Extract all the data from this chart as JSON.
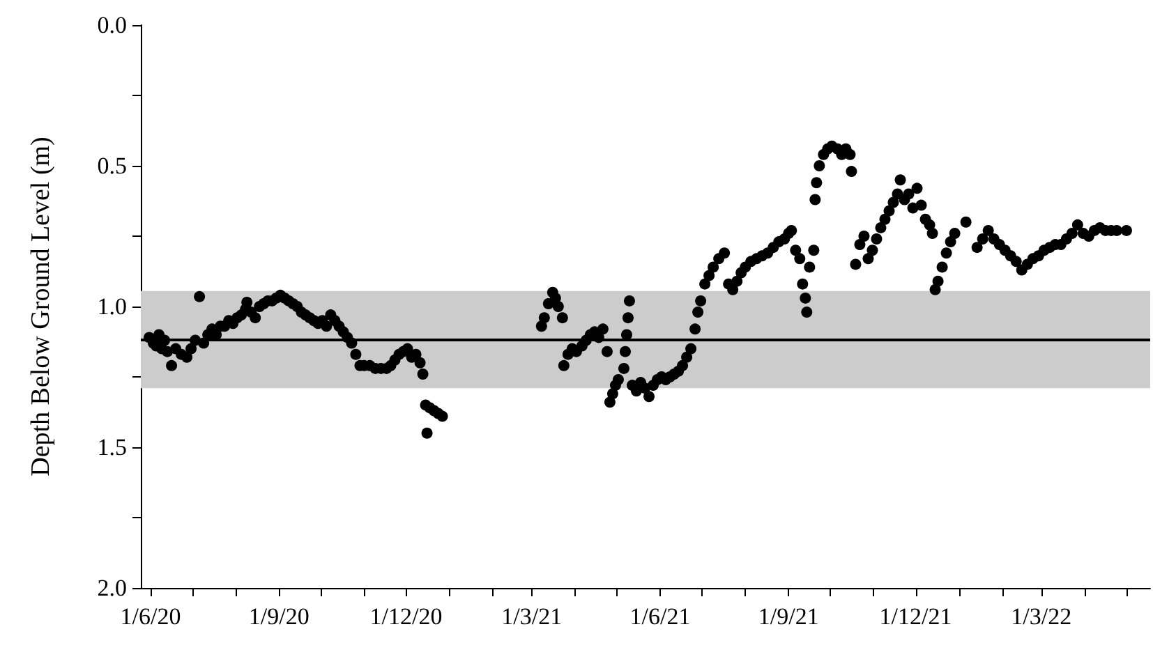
{
  "chart_data": {
    "type": "scatter",
    "ylabel": "Depth Below Ground Level (m)",
    "color": "#000000",
    "marker": "circle",
    "x": [
      "2020-05-31",
      "2020-06-03",
      "2020-06-05",
      "2020-06-07",
      "2020-06-09",
      "2020-06-11",
      "2020-06-13",
      "2020-06-16",
      "2020-06-19",
      "2020-06-23",
      "2020-06-27",
      "2020-06-30",
      "2020-07-03",
      "2020-07-06",
      "2020-07-09",
      "2020-07-12",
      "2020-07-15",
      "2020-07-18",
      "2020-07-21",
      "2020-07-24",
      "2020-07-27",
      "2020-07-30",
      "2020-08-02",
      "2020-08-05",
      "2020-08-08",
      "2020-08-09",
      "2020-08-12",
      "2020-08-15",
      "2020-08-18",
      "2020-08-21",
      "2020-08-24",
      "2020-08-27",
      "2020-08-30",
      "2020-09-02",
      "2020-09-05",
      "2020-09-08",
      "2020-09-11",
      "2020-09-14",
      "2020-09-17",
      "2020-09-20",
      "2020-09-23",
      "2020-09-26",
      "2020-09-29",
      "2020-10-02",
      "2020-10-05",
      "2020-10-08",
      "2020-10-11",
      "2020-10-14",
      "2020-10-17",
      "2020-10-20",
      "2020-10-23",
      "2020-10-26",
      "2020-10-29",
      "2020-11-01",
      "2020-11-05",
      "2020-11-09",
      "2020-11-13",
      "2020-11-17",
      "2020-11-20",
      "2020-11-23",
      "2020-11-26",
      "2020-11-29",
      "2020-12-02",
      "2020-12-05",
      "2020-12-08",
      "2020-12-11",
      "2020-12-13",
      "2020-12-15",
      "2020-12-16",
      "2020-12-18",
      "2020-12-21",
      "2020-12-24",
      "2020-12-27",
      "2021-03-08",
      "2021-03-10",
      "2021-03-13",
      "2021-03-16",
      "2021-03-18",
      "2021-03-20",
      "2021-03-23",
      "2021-03-24",
      "2021-03-27",
      "2021-03-30",
      "2021-04-02",
      "2021-04-06",
      "2021-04-09",
      "2021-04-12",
      "2021-04-15",
      "2021-04-18",
      "2021-04-21",
      "2021-04-24",
      "2021-04-26",
      "2021-04-28",
      "2021-04-30",
      "2021-05-02",
      "2021-05-06",
      "2021-05-07",
      "2021-05-08",
      "2021-05-09",
      "2021-05-10",
      "2021-05-12",
      "2021-05-15",
      "2021-05-18",
      "2021-05-21",
      "2021-05-24",
      "2021-05-27",
      "2021-05-30",
      "2021-06-02",
      "2021-06-05",
      "2021-06-08",
      "2021-06-11",
      "2021-06-14",
      "2021-06-17",
      "2021-06-20",
      "2021-06-23",
      "2021-06-26",
      "2021-06-28",
      "2021-06-30",
      "2021-07-03",
      "2021-07-06",
      "2021-07-09",
      "2021-07-13",
      "2021-07-17",
      "2021-07-20",
      "2021-07-23",
      "2021-07-26",
      "2021-07-29",
      "2021-08-01",
      "2021-08-05",
      "2021-08-09",
      "2021-08-13",
      "2021-08-17",
      "2021-08-21",
      "2021-08-25",
      "2021-08-29",
      "2021-09-01",
      "2021-09-03",
      "2021-09-06",
      "2021-09-09",
      "2021-09-11",
      "2021-09-13",
      "2021-09-14",
      "2021-09-16",
      "2021-09-19",
      "2021-09-20",
      "2021-09-21",
      "2021-09-23",
      "2021-09-26",
      "2021-09-29",
      "2021-10-02",
      "2021-10-06",
      "2021-10-09",
      "2021-10-12",
      "2021-10-15",
      "2021-10-16",
      "2021-10-19",
      "2021-10-22",
      "2021-10-25",
      "2021-10-28",
      "2021-10-31",
      "2021-11-03",
      "2021-11-06",
      "2021-11-09",
      "2021-11-12",
      "2021-11-15",
      "2021-11-18",
      "2021-11-20",
      "2021-11-23",
      "2021-11-26",
      "2021-11-29",
      "2021-12-02",
      "2021-12-05",
      "2021-12-08",
      "2021-12-11",
      "2021-12-13",
      "2021-12-15",
      "2021-12-17",
      "2021-12-20",
      "2021-12-23",
      "2021-12-26",
      "2021-12-29",
      "2022-01-06",
      "2022-01-14",
      "2022-01-18",
      "2022-01-22",
      "2022-01-26",
      "2022-01-30",
      "2022-02-03",
      "2022-02-07",
      "2022-02-11",
      "2022-02-15",
      "2022-02-19",
      "2022-02-23",
      "2022-02-27",
      "2022-03-03",
      "2022-03-07",
      "2022-03-11",
      "2022-03-15",
      "2022-03-19",
      "2022-03-23",
      "2022-03-27",
      "2022-03-31",
      "2022-04-04",
      "2022-04-08",
      "2022-04-12",
      "2022-04-16",
      "2022-04-20",
      "2022-04-24",
      "2022-05-01"
    ],
    "values": [
      1.11,
      1.13,
      1.14,
      1.1,
      1.15,
      1.12,
      1.16,
      1.21,
      1.15,
      1.17,
      1.18,
      1.15,
      1.12,
      0.965,
      1.13,
      1.1,
      1.08,
      1.1,
      1.07,
      1.07,
      1.05,
      1.06,
      1.04,
      1.03,
      1.01,
      0.985,
      1.02,
      1.04,
      1.0,
      0.99,
      0.98,
      0.98,
      0.97,
      0.96,
      0.97,
      0.98,
      0.99,
      1.0,
      1.02,
      1.03,
      1.04,
      1.05,
      1.06,
      1.05,
      1.07,
      1.03,
      1.05,
      1.07,
      1.09,
      1.11,
      1.13,
      1.17,
      1.21,
      1.21,
      1.21,
      1.22,
      1.22,
      1.22,
      1.21,
      1.19,
      1.17,
      1.16,
      1.15,
      1.18,
      1.17,
      1.2,
      1.24,
      1.35,
      1.45,
      1.36,
      1.37,
      1.38,
      1.39,
      1.07,
      1.04,
      0.99,
      0.95,
      0.97,
      1.0,
      1.04,
      1.21,
      1.17,
      1.15,
      1.16,
      1.14,
      1.12,
      1.1,
      1.09,
      1.11,
      1.08,
      1.16,
      1.34,
      1.31,
      1.28,
      1.26,
      1.22,
      1.16,
      1.1,
      1.04,
      0.98,
      1.28,
      1.3,
      1.27,
      1.29,
      1.32,
      1.28,
      1.26,
      1.25,
      1.26,
      1.25,
      1.24,
      1.23,
      1.21,
      1.18,
      1.15,
      1.08,
      1.02,
      0.98,
      0.92,
      0.89,
      0.86,
      0.83,
      0.81,
      0.92,
      0.94,
      0.91,
      0.88,
      0.86,
      0.84,
      0.83,
      0.82,
      0.81,
      0.79,
      0.77,
      0.76,
      0.74,
      0.73,
      0.8,
      0.83,
      0.92,
      0.97,
      1.02,
      0.86,
      0.8,
      0.62,
      0.56,
      0.5,
      0.46,
      0.44,
      0.43,
      0.44,
      0.46,
      0.44,
      0.46,
      0.52,
      0.85,
      0.78,
      0.75,
      0.83,
      0.8,
      0.76,
      0.72,
      0.69,
      0.66,
      0.63,
      0.6,
      0.55,
      0.62,
      0.6,
      0.65,
      0.58,
      0.64,
      0.69,
      0.71,
      0.74,
      0.94,
      0.91,
      0.86,
      0.81,
      0.77,
      0.74,
      0.7,
      0.79,
      0.76,
      0.73,
      0.76,
      0.78,
      0.8,
      0.82,
      0.84,
      0.87,
      0.85,
      0.83,
      0.82,
      0.8,
      0.79,
      0.78,
      0.78,
      0.76,
      0.74,
      0.71,
      0.74,
      0.75,
      0.73,
      0.72,
      0.73,
      0.73,
      0.73,
      0.73
    ],
    "xlim": [
      "2020-05-25",
      "2022-05-18"
    ],
    "xticks": [
      {
        "value": "2020-06-01",
        "label": "1/6/20"
      },
      {
        "value": "2020-07-01",
        "label": null
      },
      {
        "value": "2020-08-01",
        "label": null
      },
      {
        "value": "2020-09-01",
        "label": "1/9/20"
      },
      {
        "value": "2020-10-01",
        "label": null
      },
      {
        "value": "2020-11-01",
        "label": null
      },
      {
        "value": "2020-12-01",
        "label": "1/12/20"
      },
      {
        "value": "2021-01-01",
        "label": null
      },
      {
        "value": "2021-02-01",
        "label": null
      },
      {
        "value": "2021-03-01",
        "label": "1/3/21"
      },
      {
        "value": "2021-04-01",
        "label": null
      },
      {
        "value": "2021-05-01",
        "label": null
      },
      {
        "value": "2021-06-01",
        "label": "1/6/21"
      },
      {
        "value": "2021-07-01",
        "label": null
      },
      {
        "value": "2021-08-01",
        "label": null
      },
      {
        "value": "2021-09-01",
        "label": "1/9/21"
      },
      {
        "value": "2021-10-01",
        "label": null
      },
      {
        "value": "2021-11-01",
        "label": null
      },
      {
        "value": "2021-12-01",
        "label": "1/12/21"
      },
      {
        "value": "2022-01-01",
        "label": null
      },
      {
        "value": "2022-02-01",
        "label": null
      },
      {
        "value": "2022-03-01",
        "label": "1/3/22"
      },
      {
        "value": "2022-04-01",
        "label": null
      },
      {
        "value": "2022-05-01",
        "label": null
      }
    ],
    "ylim": [
      2,
      0
    ],
    "yticks": [
      {
        "value": 0,
        "label": "0.0"
      },
      {
        "value": 0.25,
        "label": null
      },
      {
        "value": 0.5,
        "label": "0.5"
      },
      {
        "value": 0.75,
        "label": null
      },
      {
        "value": 1,
        "label": "1.0"
      },
      {
        "value": 1.25,
        "label": null
      },
      {
        "value": 1.5,
        "label": "1.5"
      },
      {
        "value": 1.75,
        "label": null
      },
      {
        "value": 2,
        "label": "2.0"
      }
    ],
    "bands": [
      {
        "axis": "y",
        "from": 0.945,
        "to": 1.29,
        "color": "#cccccc"
      }
    ],
    "ref_lines": [
      {
        "axis": "y",
        "value": 1.12,
        "color": "#000000",
        "line_style": "solid"
      }
    ]
  }
}
